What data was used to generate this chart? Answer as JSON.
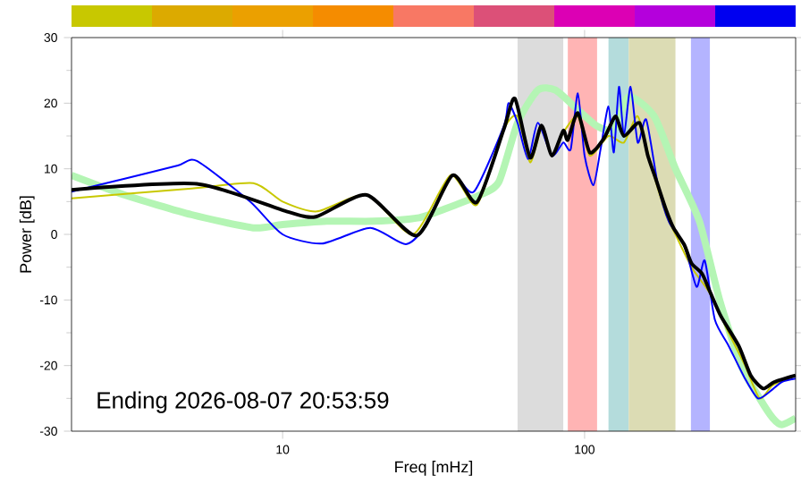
{
  "chart_data": {
    "type": "line",
    "xlabel": "Freq [mHz]",
    "ylabel": "Power [dB]",
    "log": "x",
    "xlim": [
      2,
      500
    ],
    "ylim": [
      -30,
      30
    ],
    "xticks": [
      10,
      100
    ],
    "yticks": [
      -30,
      -20,
      -10,
      0,
      10,
      20,
      30
    ],
    "grid": false,
    "marker": "none",
    "line_style": "solid",
    "annotations": [
      "Ending 2026-08-07 20:53:59"
    ],
    "bands": [
      {
        "axis": "x",
        "from": 60,
        "to": 85,
        "color": "#dcdcdc"
      },
      {
        "axis": "x",
        "from": 88,
        "to": 110,
        "color": "#ffb4b4"
      },
      {
        "axis": "x",
        "from": 120,
        "to": 140,
        "color": "#b4dcdc"
      },
      {
        "axis": "x",
        "from": 140,
        "to": 200,
        "color": "#dcdcb4"
      },
      {
        "axis": "x",
        "from": 225,
        "to": 260,
        "color": "#b4b4ff"
      }
    ],
    "series": [
      {
        "color": "#b4f5b4",
        "x": [
          2,
          3,
          5,
          8,
          10,
          14,
          20,
          28,
          35,
          45,
          52,
          60,
          70,
          80,
          95,
          110,
          125,
          140,
          170,
          200,
          240,
          280,
          330,
          380,
          420,
          450,
          500
        ],
        "values": [
          9,
          6,
          3,
          1,
          1.5,
          2,
          2,
          2.5,
          4,
          6,
          8,
          17,
          22,
          22,
          19,
          16.5,
          16,
          21,
          18,
          10,
          2,
          -10,
          -20,
          -25,
          -28,
          -29,
          -28
        ]
      },
      {
        "color": "#c8c800",
        "x": [
          2,
          5,
          8,
          10,
          13,
          19,
          27,
          36,
          44,
          54,
          60,
          66,
          72,
          78,
          85,
          95,
          104,
          120,
          135,
          150,
          165,
          186,
          200,
          226,
          260,
          300,
          340,
          380,
          420,
          500
        ],
        "values": [
          5.5,
          7,
          7.8,
          5,
          3.5,
          6,
          0,
          9,
          4.5,
          16,
          18,
          11,
          16,
          12,
          15.5,
          18,
          12,
          15,
          14,
          18,
          11,
          3,
          0,
          -5,
          -9,
          -15,
          -20,
          -25,
          -23,
          -21.5
        ]
      },
      {
        "color": "#0000ff",
        "x": [
          2,
          3,
          4.5,
          5.2,
          7.8,
          10,
          13.5,
          19.5,
          25.6,
          30,
          36.5,
          43,
          54,
          56,
          60,
          65,
          70,
          78,
          85,
          90,
          95,
          100,
          107,
          113,
          120,
          125,
          130,
          135,
          142,
          150,
          160,
          175,
          190,
          215,
          235,
          250,
          270,
          300,
          340,
          375,
          410,
          450,
          500
        ],
        "values": [
          6.5,
          8.5,
          10.5,
          11.2,
          5,
          0,
          -1.4,
          1,
          -1.5,
          1.5,
          9,
          6.5,
          16.5,
          20,
          17,
          11.5,
          17,
          12,
          14,
          13,
          21.5,
          12,
          7.5,
          13,
          19.5,
          12.5,
          22.5,
          15,
          22.5,
          14,
          17.5,
          7.5,
          2,
          -2,
          -8,
          -4,
          -13,
          -17,
          -22,
          -25,
          -24,
          -22.5,
          -22
        ]
      },
      {
        "color": "#000000",
        "x": [
          2,
          5.2,
          10.3,
          12.9,
          19,
          27.8,
          36.5,
          44,
          54,
          58.8,
          66,
          72,
          78,
          85,
          88,
          95,
          104,
          115,
          120,
          127,
          135,
          152,
          162,
          172,
          186,
          197,
          214,
          226,
          245,
          260,
          283,
          324,
          355,
          390,
          425,
          500
        ],
        "values": [
          6.8,
          7.7,
          3.5,
          2.7,
          6,
          -0.2,
          9,
          4.9,
          16,
          20.7,
          11.7,
          16.6,
          12,
          15.8,
          14.4,
          18.5,
          12.5,
          14.4,
          16,
          18,
          15,
          17,
          12,
          8.5,
          3.8,
          1,
          -1.6,
          -4.4,
          -6,
          -8.7,
          -12.5,
          -17,
          -21.5,
          -23.5,
          -22.5,
          -21.5
        ]
      }
    ]
  }
}
